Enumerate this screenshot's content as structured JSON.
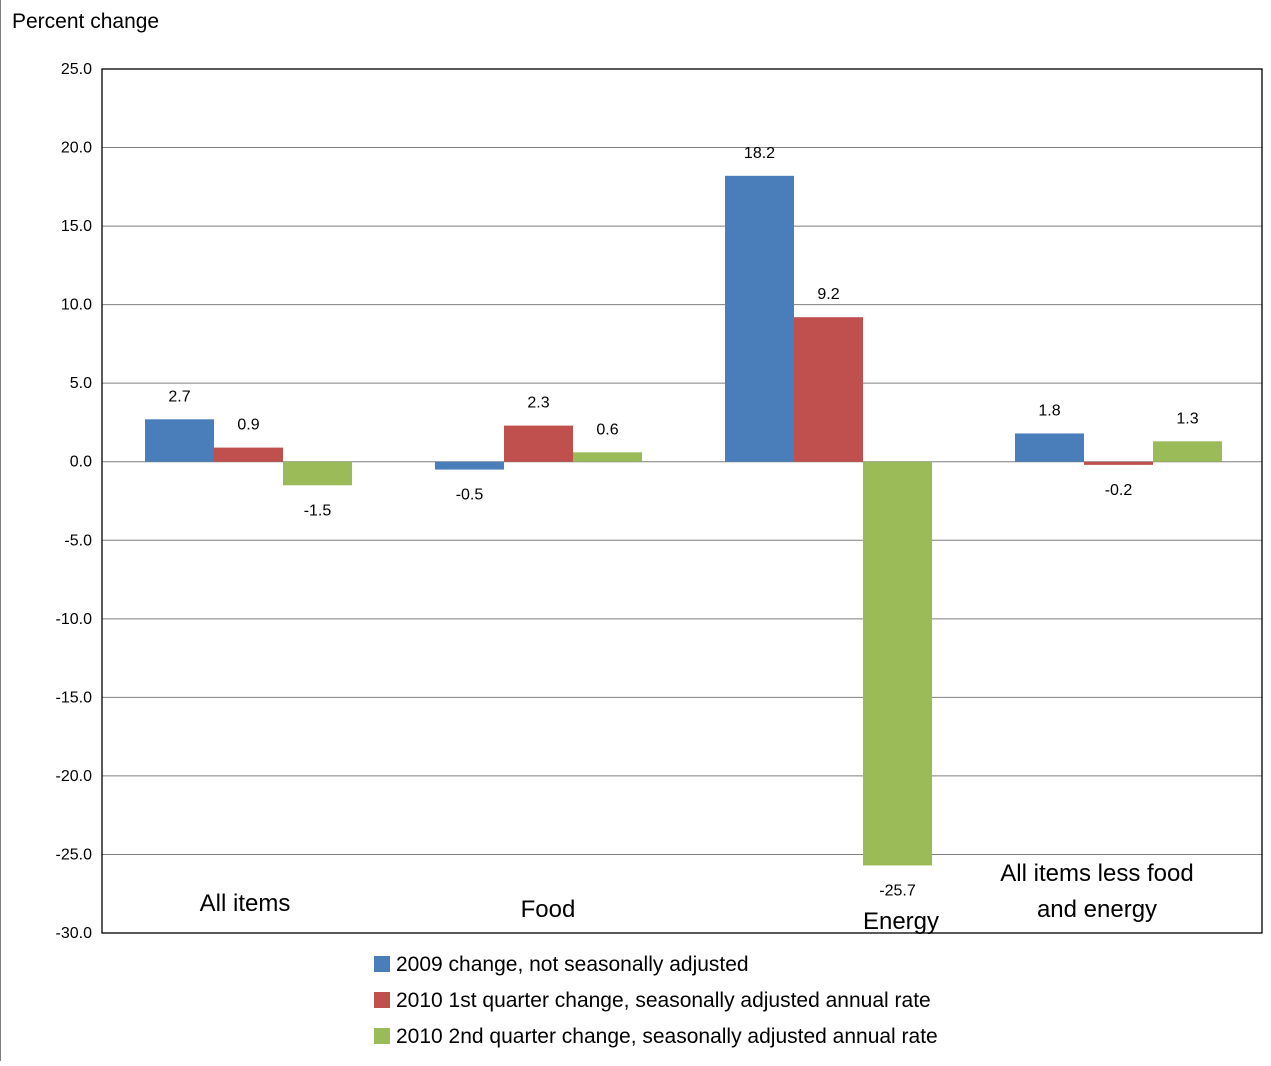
{
  "chart_data": {
    "type": "bar",
    "ylabel": "Percent change",
    "ylim": [
      -30,
      25
    ],
    "yticks": [
      "25.0",
      "20.0",
      "15.0",
      "10.0",
      "5.0",
      "0.0",
      "-5.0",
      "-10.0",
      "-15.0",
      "-20.0",
      "-25.0",
      "-30.0"
    ],
    "ytick_values": [
      25,
      20,
      15,
      10,
      5,
      0,
      -5,
      -10,
      -15,
      -20,
      -25,
      -30
    ],
    "grid": true,
    "legend_position": "bottom",
    "categories": [
      [
        "All items"
      ],
      [
        "Food"
      ],
      [
        "Energy"
      ],
      [
        "All items less food",
        "and energy"
      ]
    ],
    "series": [
      {
        "name": "2009 change, not seasonally adjusted",
        "color": "#4A7EBB",
        "values": [
          2.7,
          -0.5,
          18.2,
          1.8
        ],
        "labels": [
          "2.7",
          "-0.5",
          "18.2",
          "1.8"
        ]
      },
      {
        "name": "2010 1st quarter change, seasonally adjusted annual rate",
        "color": "#C0504D",
        "values": [
          0.9,
          2.3,
          9.2,
          -0.2
        ],
        "labels": [
          "0.9",
          "2.3",
          "9.2",
          "-0.2"
        ]
      },
      {
        "name": "2010 2nd quarter change, seasonally adjusted annual rate",
        "color": "#9BBB59",
        "values": [
          -1.5,
          0.6,
          -25.7,
          1.3
        ],
        "labels": [
          "-1.5",
          "0.6",
          "-25.7",
          "1.3"
        ]
      }
    ]
  }
}
